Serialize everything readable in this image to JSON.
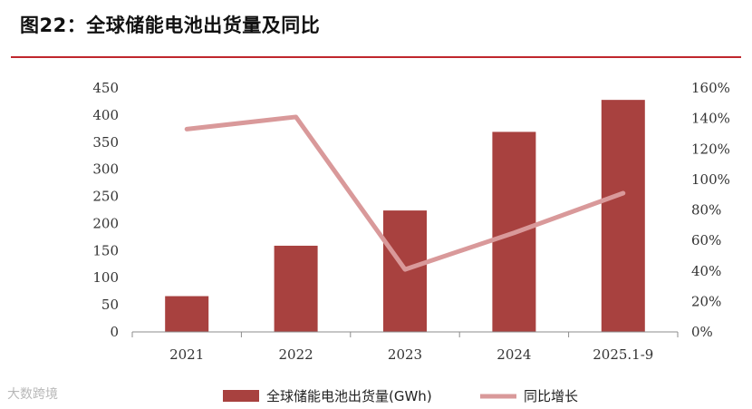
{
  "title": "图22：全球储能电池出货量及同比",
  "watermark": "大数跨境",
  "colors": {
    "bar": "#a8413f",
    "line": "#d9999a",
    "rule": "#c0272d"
  },
  "chart_data": {
    "type": "bar+line",
    "categories": [
      "2021",
      "2022",
      "2023",
      "2024",
      "2025.1-9"
    ],
    "series": [
      {
        "name": "全球储能电池出货量(GWh)",
        "type": "bar",
        "axis": "left",
        "values": [
          66,
          159,
          224,
          369,
          428
        ]
      },
      {
        "name": "同比增长",
        "type": "line",
        "axis": "right",
        "values": [
          133,
          141,
          41,
          65,
          91
        ]
      }
    ],
    "y_left": {
      "min": 0,
      "max": 450,
      "step": 50,
      "ticks": [
        "0",
        "50",
        "100",
        "150",
        "200",
        "250",
        "300",
        "350",
        "400",
        "450"
      ]
    },
    "y_right": {
      "min": 0,
      "max": 160,
      "step": 20,
      "ticks": [
        "0%",
        "20%",
        "40%",
        "60%",
        "80%",
        "100%",
        "120%",
        "140%",
        "160%"
      ]
    },
    "legend_position": "bottom"
  }
}
